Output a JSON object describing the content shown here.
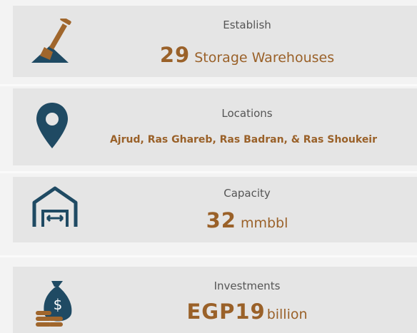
{
  "cards": [
    {
      "label": "Establish",
      "value": 29,
      "unit": "Storage Warehouses"
    },
    {
      "label": "Locations",
      "text": "Ajrud, Ras Ghareb,  Ras Badran, & Ras Shoukeir"
    },
    {
      "label": "Capacity",
      "value": 32,
      "unit": "mmbbl"
    },
    {
      "label": "Investments",
      "value": "EGP19",
      "unit": "billion"
    }
  ]
}
